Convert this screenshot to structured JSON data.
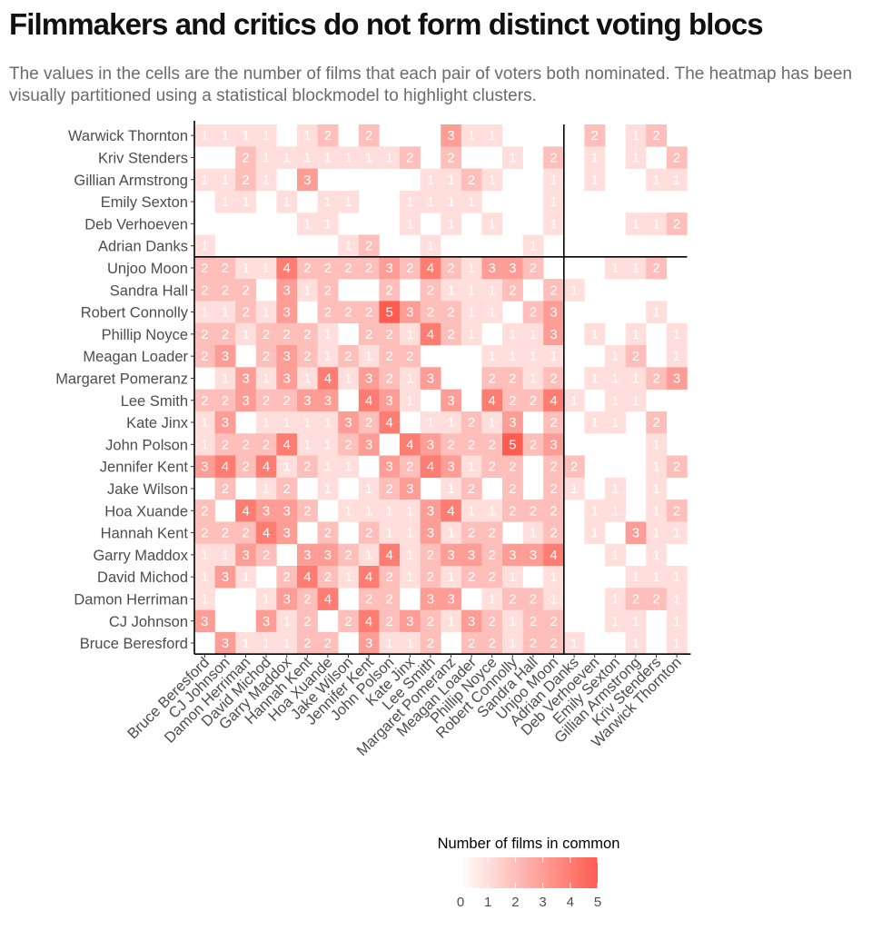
{
  "chart_data": {
    "type": "heatmap",
    "title": "Filmmakers and critics do not form distinct voting blocs",
    "subtitle": "The values in the cells are the number of films that each pair of voters both nominated. The heatmap has been visually partitioned using a statistical blockmodel to highlight clusters.",
    "x_categories": [
      "Bruce Beresford",
      "CJ Johnson",
      "Damon Herriman",
      "David Michod",
      "Garry Maddox",
      "Hannah Kent",
      "Hoa Xuande",
      "Jake Wilson",
      "Jennifer Kent",
      "John Polson",
      "Kate Jinx",
      "Lee Smith",
      "Margaret Pomeranz",
      "Meagan Loader",
      "Phillip Noyce",
      "Robert Connolly",
      "Sandra Hall",
      "Unjoo Moon",
      "Adrian Danks",
      "Deb Verhoeven",
      "Emily Sexton",
      "Gillian Armstrong",
      "Kriv Stenders",
      "Warwick Thornton"
    ],
    "y_categories": [
      "Warwick Thornton",
      "Kriv Stenders",
      "Gillian Armstrong",
      "Emily Sexton",
      "Deb Verhoeven",
      "Adrian Danks",
      "Unjoo Moon",
      "Sandra Hall",
      "Robert Connolly",
      "Phillip Noyce",
      "Meagan Loader",
      "Margaret Pomeranz",
      "Lee Smith",
      "Kate Jinx",
      "John Polson",
      "Jennifer Kent",
      "Jake Wilson",
      "Hoa Xuande",
      "Hannah Kent",
      "Garry Maddox",
      "David Michod",
      "Damon Herriman",
      "CJ Johnson",
      "Bruce Beresford"
    ],
    "values": [
      [
        1,
        1,
        1,
        1,
        0,
        1,
        2,
        0,
        2,
        0,
        0,
        0,
        3,
        1,
        1,
        0,
        0,
        0,
        0,
        2,
        0,
        1,
        2,
        0
      ],
      [
        0,
        0,
        2,
        1,
        1,
        1,
        1,
        1,
        1,
        1,
        2,
        0,
        2,
        0,
        0,
        1,
        0,
        2,
        0,
        1,
        0,
        1,
        0,
        2
      ],
      [
        1,
        1,
        2,
        1,
        0,
        3,
        0,
        0,
        0,
        0,
        0,
        1,
        1,
        2,
        1,
        0,
        0,
        1,
        0,
        1,
        0,
        0,
        1,
        1
      ],
      [
        0,
        1,
        1,
        0,
        1,
        0,
        1,
        1,
        0,
        0,
        1,
        1,
        1,
        1,
        0,
        0,
        0,
        1,
        0,
        0,
        0,
        0,
        0,
        0
      ],
      [
        0,
        0,
        0,
        0,
        0,
        1,
        1,
        0,
        0,
        0,
        1,
        0,
        1,
        0,
        1,
        0,
        0,
        1,
        0,
        0,
        0,
        1,
        1,
        2
      ],
      [
        1,
        0,
        0,
        0,
        0,
        0,
        0,
        1,
        2,
        0,
        0,
        1,
        0,
        0,
        0,
        0,
        1,
        0,
        0,
        0,
        0,
        0,
        0,
        0
      ],
      [
        2,
        2,
        1,
        1,
        4,
        2,
        2,
        2,
        2,
        3,
        2,
        4,
        2,
        1,
        3,
        3,
        2,
        0,
        0,
        0,
        1,
        1,
        2,
        0
      ],
      [
        2,
        2,
        2,
        0,
        3,
        1,
        2,
        0,
        0,
        2,
        0,
        2,
        1,
        1,
        1,
        2,
        0,
        2,
        1,
        0,
        0,
        0,
        0,
        0
      ],
      [
        1,
        1,
        2,
        1,
        3,
        0,
        2,
        2,
        2,
        5,
        3,
        2,
        2,
        1,
        1,
        0,
        2,
        3,
        0,
        0,
        0,
        0,
        1,
        0
      ],
      [
        2,
        2,
        1,
        2,
        2,
        2,
        1,
        0,
        2,
        2,
        1,
        4,
        2,
        1,
        0,
        1,
        1,
        3,
        0,
        1,
        0,
        1,
        0,
        1
      ],
      [
        2,
        3,
        0,
        2,
        3,
        2,
        1,
        2,
        1,
        2,
        2,
        0,
        0,
        0,
        1,
        1,
        1,
        1,
        0,
        0,
        1,
        2,
        0,
        1
      ],
      [
        0,
        1,
        3,
        1,
        3,
        1,
        4,
        1,
        3,
        2,
        1,
        3,
        0,
        0,
        2,
        2,
        1,
        2,
        0,
        1,
        1,
        1,
        2,
        3
      ],
      [
        2,
        2,
        3,
        2,
        2,
        3,
        3,
        0,
        4,
        3,
        1,
        0,
        3,
        0,
        4,
        2,
        2,
        4,
        1,
        0,
        1,
        1,
        0,
        0
      ],
      [
        1,
        3,
        0,
        1,
        1,
        1,
        1,
        3,
        2,
        4,
        0,
        1,
        1,
        2,
        1,
        3,
        0,
        2,
        0,
        1,
        1,
        0,
        2,
        0
      ],
      [
        1,
        2,
        2,
        2,
        4,
        1,
        1,
        2,
        3,
        0,
        4,
        3,
        2,
        2,
        2,
        5,
        2,
        3,
        0,
        0,
        0,
        0,
        1,
        0
      ],
      [
        3,
        4,
        2,
        4,
        1,
        2,
        1,
        1,
        0,
        3,
        2,
        4,
        3,
        1,
        2,
        2,
        0,
        2,
        2,
        0,
        0,
        0,
        1,
        2
      ],
      [
        0,
        2,
        0,
        1,
        2,
        0,
        1,
        0,
        1,
        2,
        3,
        0,
        1,
        2,
        0,
        2,
        0,
        2,
        1,
        0,
        1,
        0,
        1,
        0
      ],
      [
        2,
        0,
        4,
        3,
        3,
        2,
        0,
        1,
        1,
        1,
        1,
        3,
        4,
        1,
        1,
        2,
        2,
        2,
        0,
        1,
        1,
        0,
        1,
        2
      ],
      [
        2,
        2,
        2,
        4,
        3,
        0,
        2,
        0,
        2,
        1,
        1,
        3,
        1,
        2,
        2,
        0,
        1,
        2,
        0,
        1,
        0,
        3,
        1,
        1
      ],
      [
        1,
        1,
        3,
        2,
        0,
        3,
        3,
        2,
        1,
        4,
        1,
        2,
        3,
        3,
        2,
        3,
        3,
        4,
        0,
        0,
        1,
        0,
        1,
        0
      ],
      [
        1,
        3,
        1,
        0,
        2,
        4,
        2,
        1,
        4,
        2,
        1,
        2,
        1,
        2,
        2,
        1,
        0,
        1,
        0,
        0,
        0,
        1,
        1,
        1
      ],
      [
        1,
        0,
        0,
        1,
        3,
        2,
        4,
        0,
        2,
        2,
        0,
        3,
        3,
        0,
        1,
        2,
        2,
        1,
        0,
        0,
        1,
        2,
        2,
        1
      ],
      [
        3,
        0,
        0,
        3,
        1,
        2,
        0,
        2,
        4,
        2,
        3,
        2,
        1,
        3,
        2,
        1,
        2,
        2,
        0,
        0,
        1,
        1,
        0,
        1
      ],
      [
        0,
        3,
        1,
        1,
        1,
        2,
        2,
        0,
        3,
        1,
        1,
        2,
        0,
        2,
        2,
        1,
        2,
        2,
        1,
        0,
        0,
        1,
        0,
        1
      ]
    ],
    "partitions": {
      "after_x_index": 17,
      "after_y_index": 5
    },
    "color_scale": {
      "low": "#ffffff",
      "high": "#fd5c50",
      "min": 0,
      "max": 5
    },
    "legend": {
      "title": "Number of films in common",
      "ticks": [
        0,
        1,
        2,
        3,
        4,
        5
      ],
      "placement": "bottom"
    },
    "xlabel": "",
    "ylabel": ""
  }
}
